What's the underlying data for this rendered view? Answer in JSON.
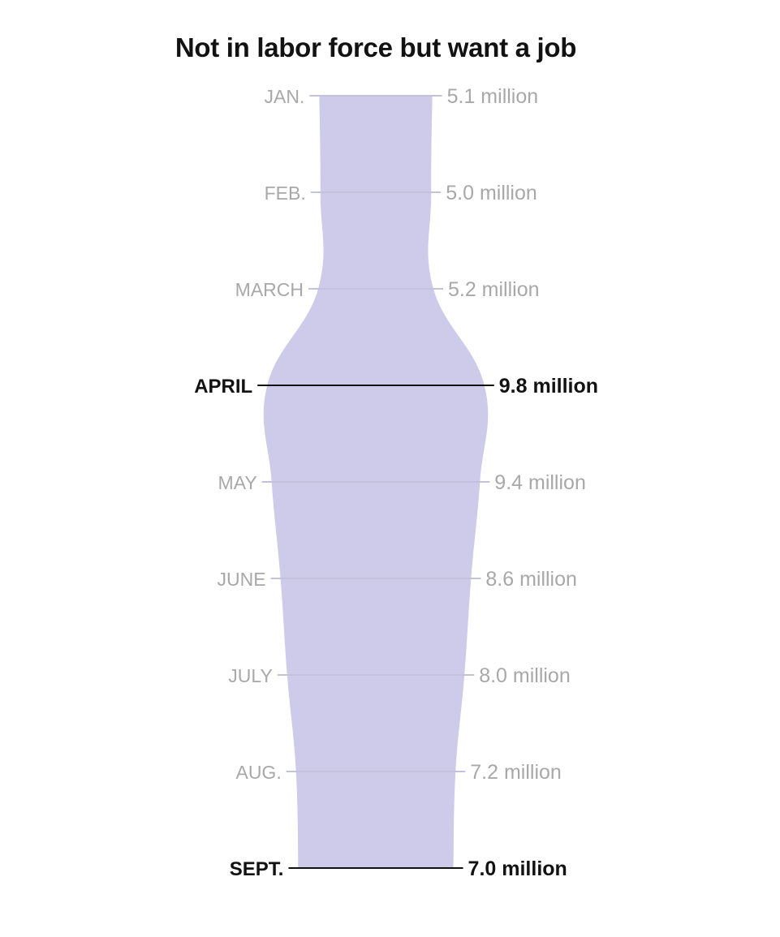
{
  "chart_data": {
    "type": "area",
    "title": "Not in labor force but want a job",
    "xlabel": "",
    "ylabel": "",
    "unit": "million",
    "categories": [
      "JAN.",
      "FEB.",
      "MARCH",
      "APRIL",
      "MAY",
      "JUNE",
      "JULY",
      "AUG.",
      "SEPT."
    ],
    "values": [
      5.1,
      5.0,
      5.2,
      9.8,
      9.4,
      8.6,
      8.0,
      7.2,
      7.0
    ],
    "value_labels": [
      "5.1 million",
      "5.0 million",
      "5.2 million",
      "9.8 million",
      "9.4 million",
      "8.6 million",
      "8.0 million",
      "7.2 million",
      "7.0 million"
    ],
    "highlighted": [
      "APRIL",
      "SEPT."
    ],
    "orientation": "vertical-symmetric",
    "grid": false,
    "legend": "none"
  },
  "colors": {
    "fill": "#cdcaea",
    "tick_muted": "#c4c1dc",
    "text_muted": "#a8a8a8",
    "text_strong": "#121212"
  }
}
